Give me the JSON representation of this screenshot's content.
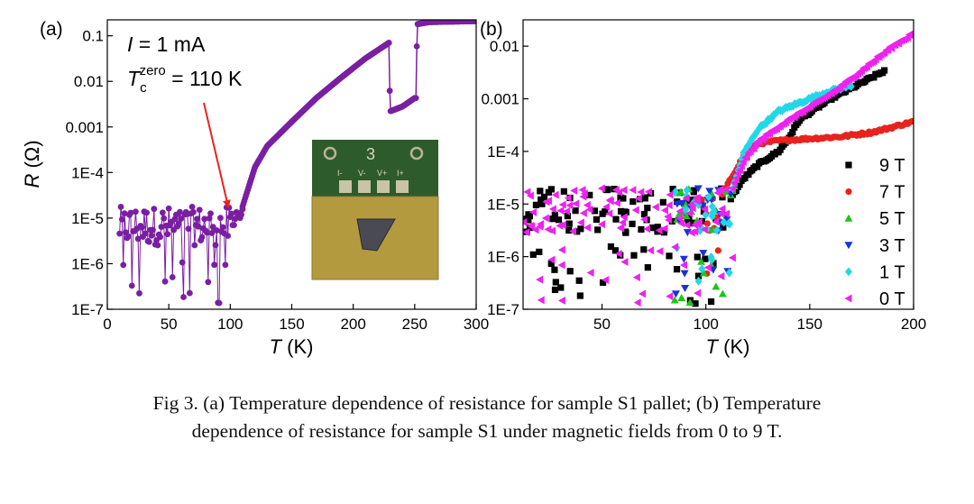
{
  "chart_data": [
    {
      "panel_label": "(a)",
      "type": "line",
      "xlabel_var": "T",
      "xlabel_unit": " (K)",
      "ylabel_var": "R",
      "ylabel_unit": " (Ω)",
      "xlim": [
        0,
        300
      ],
      "ylim_log10": [
        -7,
        -0.65
      ],
      "y_scale": "log",
      "xticks": [
        0,
        50,
        100,
        150,
        200,
        250,
        300
      ],
      "xtick_labels": [
        "0",
        "50",
        "100",
        "150",
        "200",
        "250",
        "300"
      ],
      "yticks": [
        1e-07,
        1e-06,
        1e-05,
        0.0001,
        0.001,
        0.01,
        0.1
      ],
      "ytick_labels": [
        "1E-7",
        "1E-6",
        "1E-5",
        "1E-4",
        "0.001",
        "0.01",
        "0.1"
      ],
      "color": "#7a1fa2",
      "annotation_current": {
        "var": "I",
        "rest": " = 1 mA"
      },
      "annotation_tc": {
        "var": "T",
        "sub": "c",
        "sup": "zero",
        "rest": " = 110 K"
      },
      "arrow_color": "#e8231e",
      "arrow_target": {
        "x": 100,
        "y": 1.8e-05
      },
      "inset": {
        "description": "photo",
        "pad_labels": [
          "I-",
          "V-",
          "V+",
          "I+"
        ],
        "number": "3"
      },
      "segments": [
        {
          "name": "noise",
          "x_range": [
            10,
            110
          ],
          "log10_y_range": [
            -7,
            -4.8
          ]
        },
        {
          "name": "rise",
          "points": [
            [
              110,
              1.8e-05
            ],
            [
              120,
              0.00013
            ],
            [
              130,
              0.00038
            ],
            [
              150,
              0.0013
            ],
            [
              170,
              0.0043
            ],
            [
              190,
              0.012
            ],
            [
              210,
              0.032
            ],
            [
              229,
              0.07
            ]
          ]
        },
        {
          "name": "jump_down",
          "points": [
            [
              229,
              0.07
            ],
            [
              230,
              0.0022
            ],
            [
              240,
              0.0028
            ],
            [
              250,
              0.0043
            ]
          ]
        },
        {
          "name": "jump_up",
          "points": [
            [
              251,
              0.0043
            ],
            [
              252,
              0.18
            ],
            [
              262,
              0.2
            ],
            [
              300,
              0.21
            ]
          ]
        }
      ]
    },
    {
      "panel_label": "(b)",
      "type": "scatter",
      "xlabel_var": "T",
      "xlabel_unit": " (K)",
      "xlim": [
        12,
        200
      ],
      "ylim_log10": [
        -7,
        -1.5
      ],
      "y_scale": "log",
      "xticks": [
        50,
        100,
        150,
        200
      ],
      "xtick_labels": [
        "50",
        "100",
        "150",
        "200"
      ],
      "yticks": [
        1e-07,
        1e-06,
        1e-05,
        0.0001,
        0.001,
        0.01
      ],
      "ytick_labels": [
        "1E-7",
        "1E-6",
        "1E-5",
        "1E-4",
        "0.001",
        "0.01"
      ],
      "legend_position": "bottom-right",
      "series": [
        {
          "name": "9 T",
          "color": "#000000",
          "marker": "square",
          "noise_x": [
            12,
            112
          ],
          "curve": [
            [
              112,
              1.3e-05
            ],
            [
              118,
              3e-05
            ],
            [
              125,
              5.5e-05
            ],
            [
              135,
              0.0001
            ],
            [
              140,
              0.00018
            ],
            [
              145,
              0.0004
            ],
            [
              160,
              0.001
            ],
            [
              175,
              0.002
            ],
            [
              186,
              0.0034
            ]
          ]
        },
        {
          "name": "7 T",
          "color": "#e8231e",
          "marker": "circle",
          "noise_x": [
            95,
            108
          ],
          "curve": [
            [
              108,
              1.5e-05
            ],
            [
              112,
              3e-05
            ],
            [
              118,
              8e-05
            ],
            [
              125,
              0.00014
            ],
            [
              135,
              0.00016
            ],
            [
              150,
              0.000175
            ],
            [
              165,
              0.00019
            ],
            [
              180,
              0.00023
            ],
            [
              190,
              0.00029
            ],
            [
              200,
              0.00037
            ]
          ]
        },
        {
          "name": "5 T",
          "color": "#22c31e",
          "marker": "triangle-up",
          "noise_x": [
            85,
            112
          ],
          "curve": [
            [
              112,
              1.5e-05
            ],
            [
              116,
              4e-05
            ]
          ]
        },
        {
          "name": "3 T",
          "color": "#1833d8",
          "marker": "triangle-down",
          "noise_x": [
            85,
            112
          ],
          "curve": [
            [
              112,
              1.5e-05
            ],
            [
              116,
              4.5e-05
            ]
          ]
        },
        {
          "name": "1 T",
          "color": "#22d8e6",
          "marker": "diamond",
          "noise_x": [
            85,
            113
          ],
          "curve": [
            [
              113,
              2e-05
            ],
            [
              118,
              9e-05
            ],
            [
              125,
              0.00026
            ],
            [
              135,
              0.00058
            ],
            [
              150,
              0.001
            ],
            [
              160,
              0.0014
            ],
            [
              170,
              0.0018
            ]
          ]
        },
        {
          "name": "0 T",
          "color": "#ee22ee",
          "marker": "triangle-left",
          "noise_x": [
            12,
            113
          ],
          "curve": [
            [
              113,
              2e-05
            ],
            [
              118,
              6.5e-05
            ],
            [
              125,
              0.00015
            ],
            [
              135,
              0.0003
            ],
            [
              150,
              0.0007
            ],
            [
              165,
              0.0017
            ],
            [
              180,
              0.005
            ],
            [
              190,
              0.01
            ],
            [
              200,
              0.018
            ]
          ]
        }
      ]
    }
  ],
  "caption": {
    "line1": "Fig 3. (a) Temperature dependence of resistance for sample S1 pallet; (b) Temperature",
    "line2": "dependence of resistance for sample S1 under magnetic fields from 0 to 9 T."
  }
}
